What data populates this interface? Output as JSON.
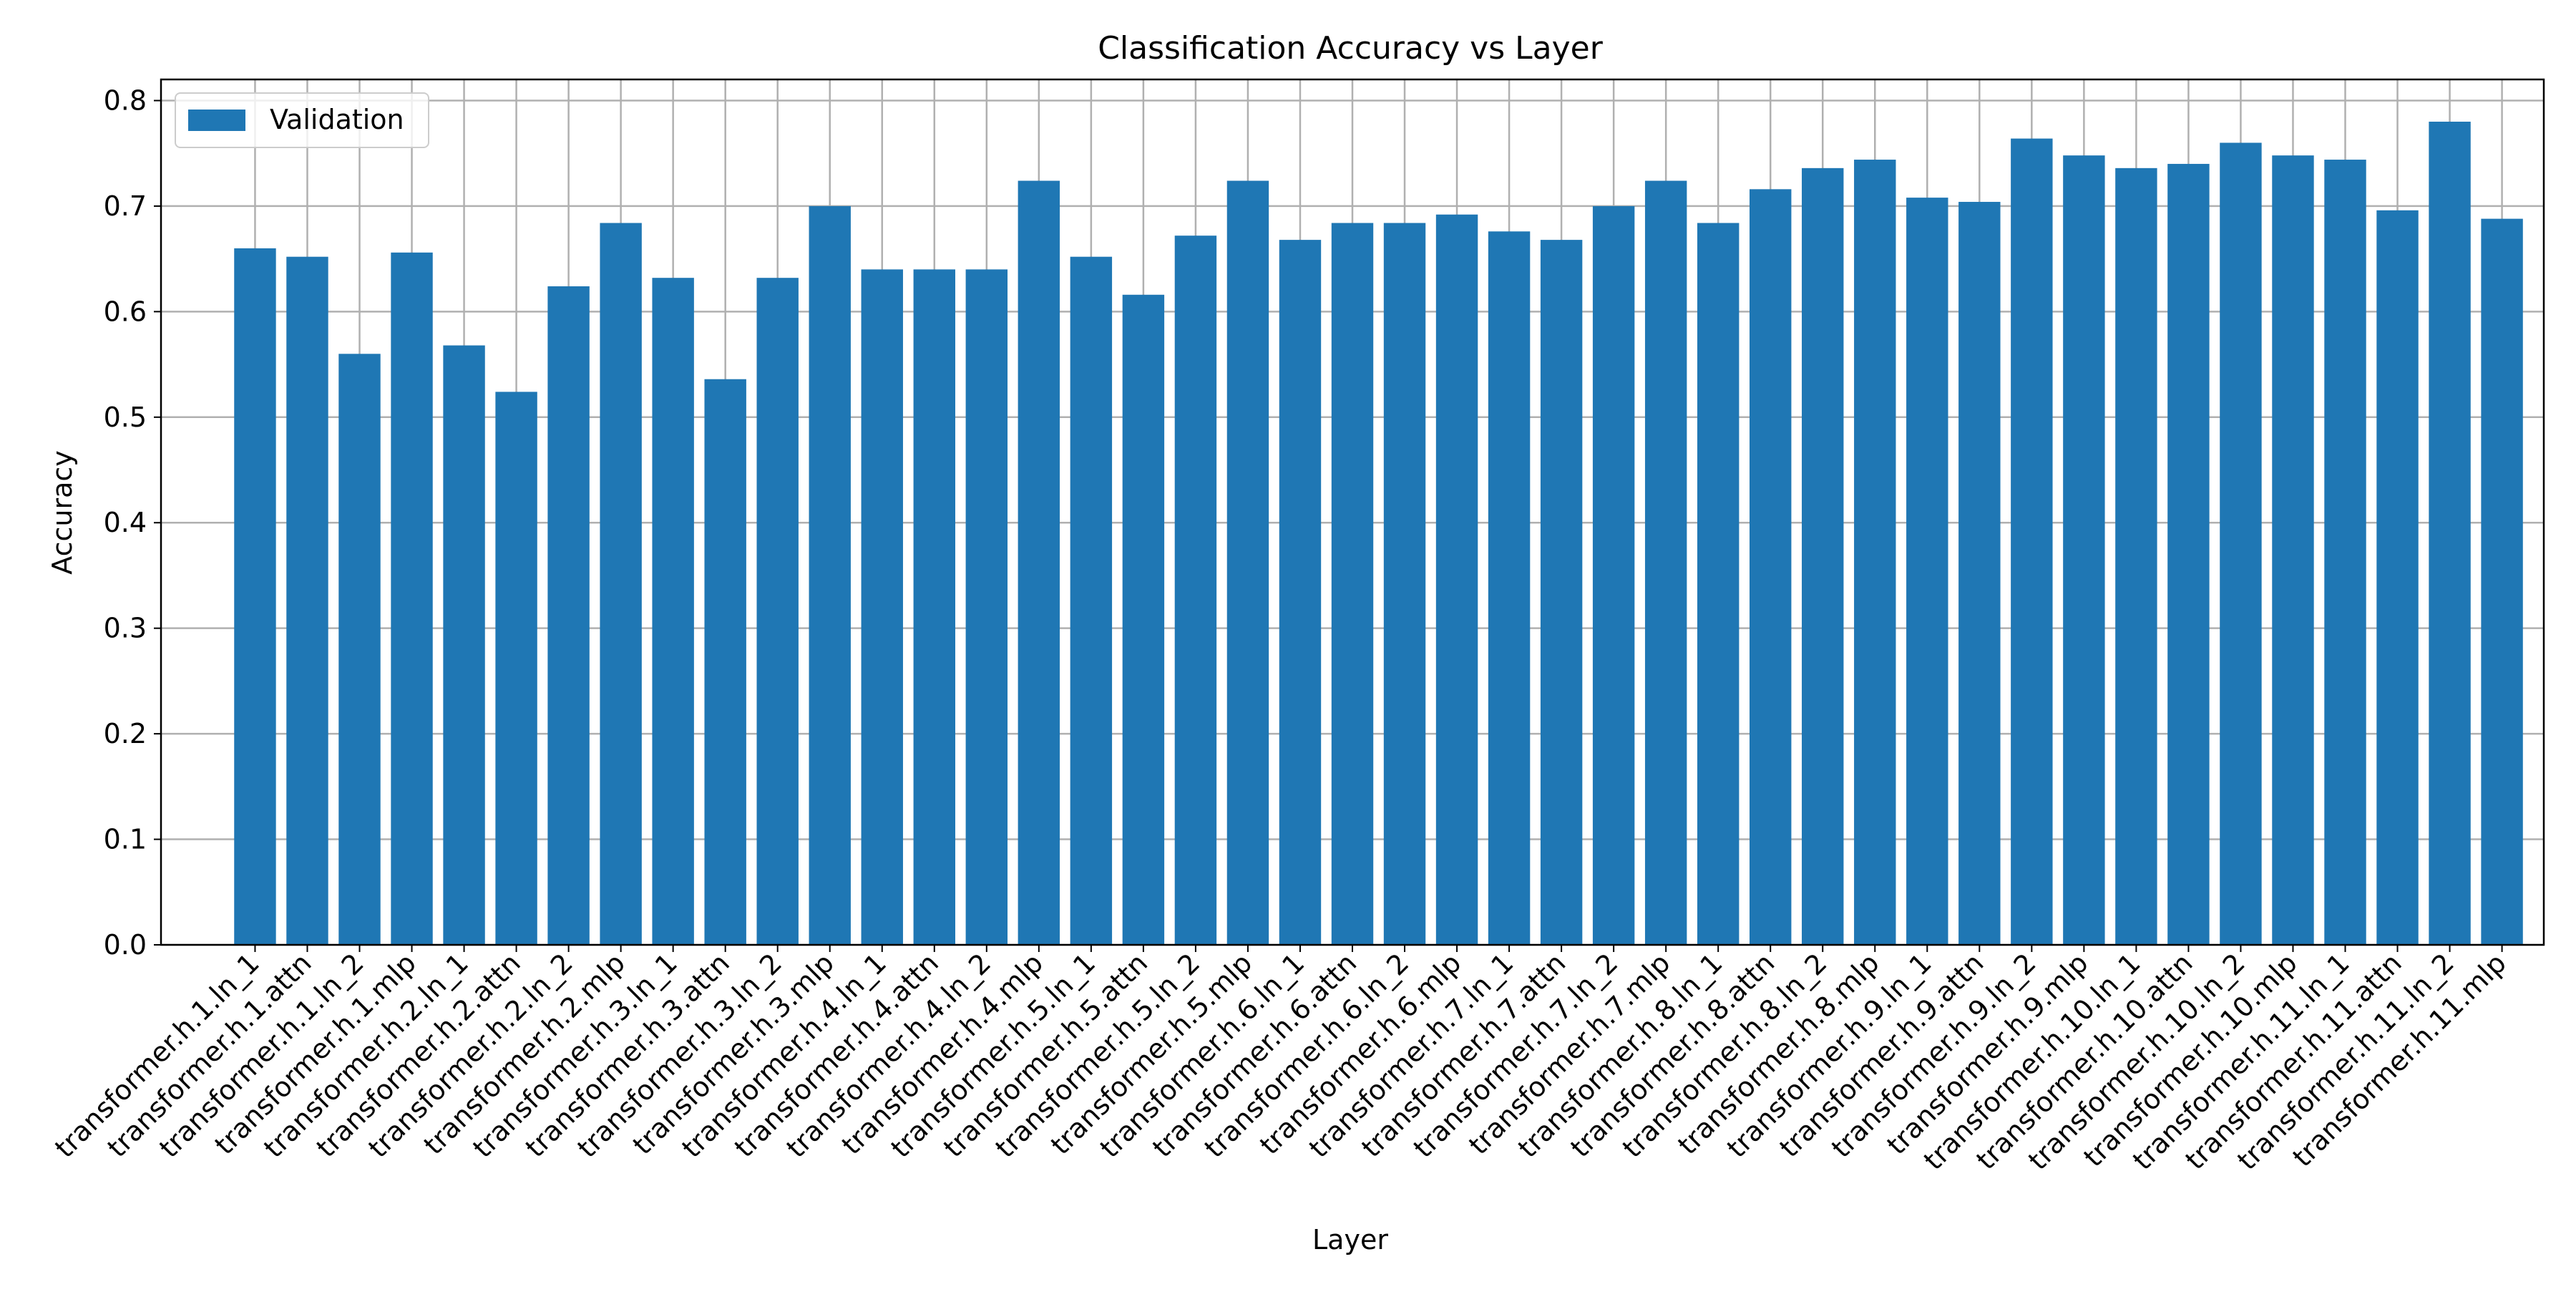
{
  "chart_data": {
    "type": "bar",
    "title": "Classification Accuracy vs Layer",
    "xlabel": "Layer",
    "ylabel": "Accuracy",
    "ylim": [
      0,
      0.82
    ],
    "yticks": [
      0.0,
      0.1,
      0.2,
      0.3,
      0.4,
      0.5,
      0.6,
      0.7,
      0.8
    ],
    "ytick_labels": [
      "0.0",
      "0.1",
      "0.2",
      "0.3",
      "0.4",
      "0.5",
      "0.6",
      "0.7",
      "0.8"
    ],
    "grid": true,
    "legend": {
      "position": "top-left",
      "entries": [
        "Validation"
      ]
    },
    "colors": {
      "bar": "#1f77b4",
      "grid": "#b0b0b0",
      "axis": "#000000"
    },
    "categories": [
      "transformer.h.1.ln_1",
      "transformer.h.1.attn",
      "transformer.h.1.ln_2",
      "transformer.h.1.mlp",
      "transformer.h.2.ln_1",
      "transformer.h.2.attn",
      "transformer.h.2.ln_2",
      "transformer.h.2.mlp",
      "transformer.h.3.ln_1",
      "transformer.h.3.attn",
      "transformer.h.3.ln_2",
      "transformer.h.3.mlp",
      "transformer.h.4.ln_1",
      "transformer.h.4.attn",
      "transformer.h.4.ln_2",
      "transformer.h.4.mlp",
      "transformer.h.5.ln_1",
      "transformer.h.5.attn",
      "transformer.h.5.ln_2",
      "transformer.h.5.mlp",
      "transformer.h.6.ln_1",
      "transformer.h.6.attn",
      "transformer.h.6.ln_2",
      "transformer.h.6.mlp",
      "transformer.h.7.ln_1",
      "transformer.h.7.attn",
      "transformer.h.7.ln_2",
      "transformer.h.7.mlp",
      "transformer.h.8.ln_1",
      "transformer.h.8.attn",
      "transformer.h.8.ln_2",
      "transformer.h.8.mlp",
      "transformer.h.9.ln_1",
      "transformer.h.9.attn",
      "transformer.h.9.ln_2",
      "transformer.h.9.mlp",
      "transformer.h.10.ln_1",
      "transformer.h.10.attn",
      "transformer.h.10.ln_2",
      "transformer.h.10.mlp",
      "transformer.h.11.ln_1",
      "transformer.h.11.attn",
      "transformer.h.11.ln_2",
      "transformer.h.11.mlp"
    ],
    "series": [
      {
        "name": "Validation",
        "values": [
          0.66,
          0.652,
          0.56,
          0.656,
          0.568,
          0.524,
          0.624,
          0.684,
          0.632,
          0.536,
          0.632,
          0.7,
          0.64,
          0.64,
          0.64,
          0.724,
          0.652,
          0.616,
          0.672,
          0.724,
          0.668,
          0.684,
          0.684,
          0.692,
          0.676,
          0.668,
          0.7,
          0.724,
          0.684,
          0.716,
          0.736,
          0.744,
          0.708,
          0.704,
          0.764,
          0.748,
          0.736,
          0.74,
          0.76,
          0.748,
          0.744,
          0.696,
          0.78,
          0.688
        ]
      }
    ]
  }
}
